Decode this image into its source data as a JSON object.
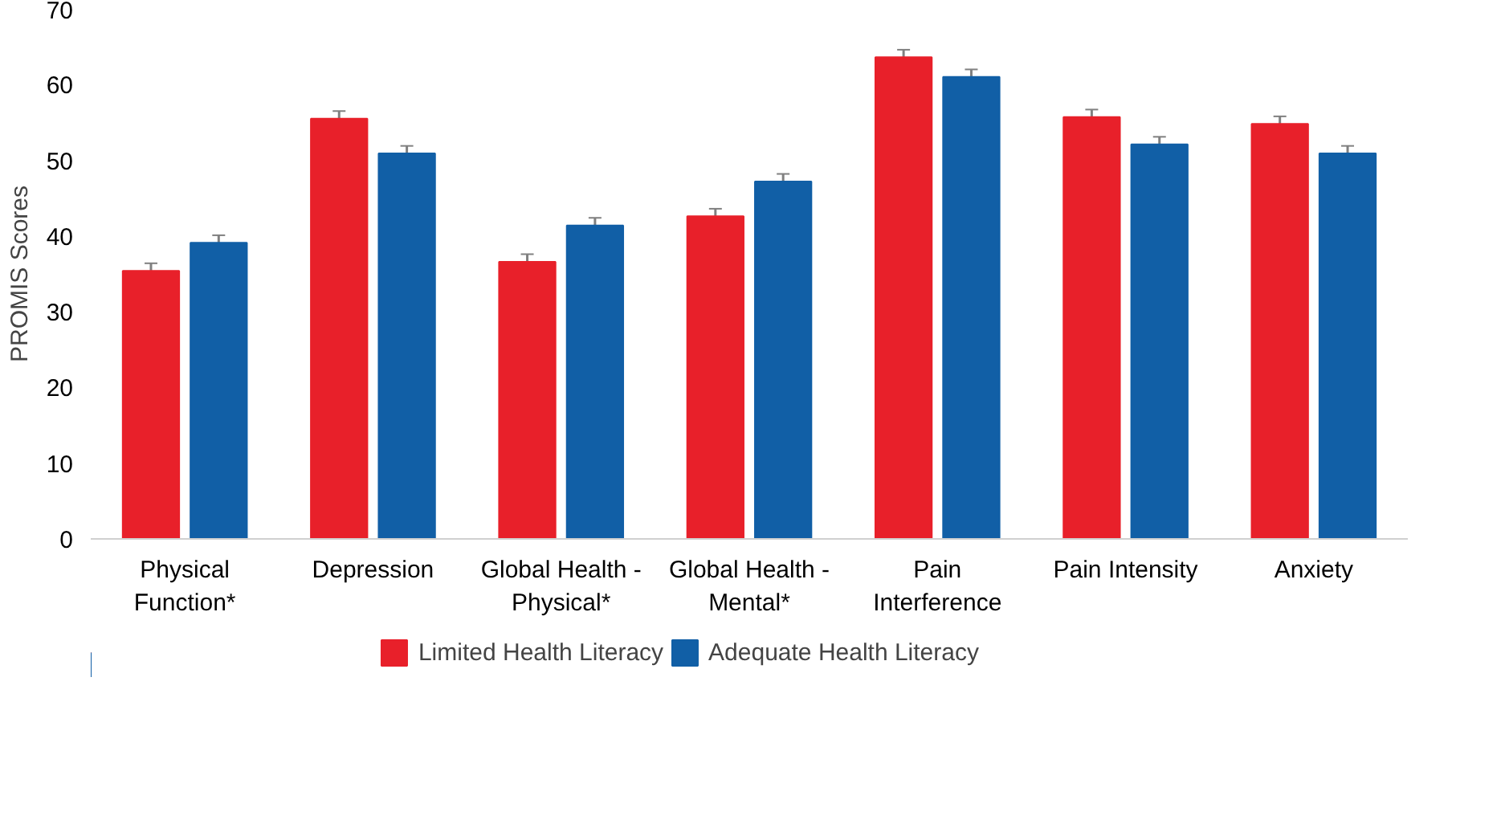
{
  "chart_data": {
    "type": "bar",
    "ylabel": "PROMIS Scores",
    "categories": [
      "Physical\nFunction*",
      "Depression",
      "Global Health -\nPhysical*",
      "Global Health -\nMental*",
      "Pain\nInterference",
      "Pain Intensity",
      "Anxiety"
    ],
    "series": [
      {
        "name": "Limited Health Literacy",
        "color": "#e8202a",
        "values": [
          35.4,
          55.5,
          36.6,
          42.6,
          63.6,
          55.7,
          54.8
        ],
        "errors": [
          1,
          1,
          1,
          1,
          1,
          1,
          1
        ]
      },
      {
        "name": "Adequate Health Literacy",
        "color": "#115fa6",
        "values": [
          39.1,
          50.9,
          41.4,
          47.2,
          61.0,
          52.1,
          50.9
        ],
        "errors": [
          1,
          1,
          1,
          1,
          1,
          1,
          1
        ]
      }
    ],
    "ylim": [
      0,
      70
    ],
    "yticks": [
      0,
      10,
      20,
      30,
      40,
      50,
      60,
      70
    ],
    "grid": false,
    "legend": "bottom"
  }
}
